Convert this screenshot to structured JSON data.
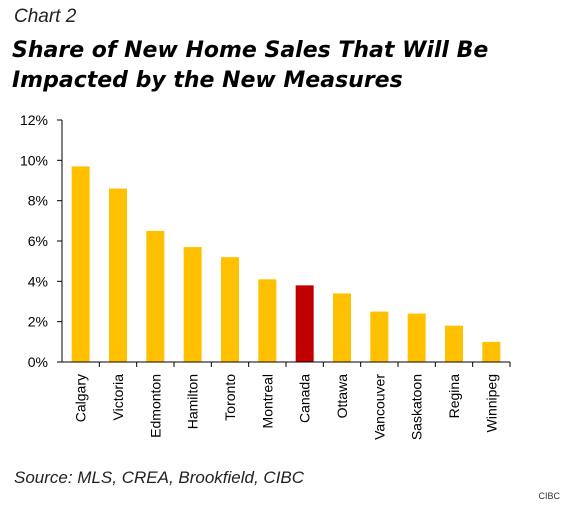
{
  "chart_label": "Chart 2",
  "title": "Share of New Home Sales That Will Be Impacted by the New Measures",
  "source": "Source: MLS, CREA, Brookfield, CIBC",
  "credit": "CIBC",
  "colors": {
    "bar": "#FFC000",
    "highlight": "#C00000",
    "axis": "#000000"
  },
  "chart_data": {
    "type": "bar",
    "categories": [
      "Calgary",
      "Victoria",
      "Edmonton",
      "Hamilton",
      "Toronto",
      "Montreal",
      "Canada",
      "Ottawa",
      "Vancouver",
      "Saskatoon",
      "Regina",
      "Winnipeg"
    ],
    "values": [
      9.7,
      8.6,
      6.5,
      5.7,
      5.2,
      4.1,
      3.8,
      3.4,
      2.5,
      2.4,
      1.8,
      1.0
    ],
    "highlight": "Canada",
    "ylim": [
      0,
      12
    ],
    "yticks": [
      "0%",
      "2%",
      "4%",
      "6%",
      "8%",
      "10%",
      "12%"
    ],
    "xlabel": "",
    "ylabel": "",
    "grid": false,
    "legend": "none"
  }
}
